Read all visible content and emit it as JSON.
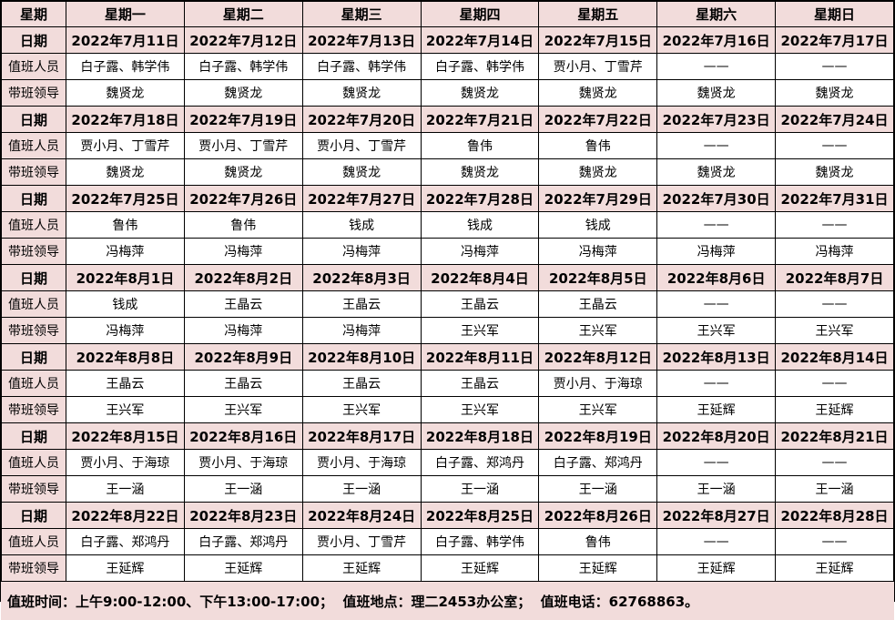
{
  "header": {
    "corner_label": "星期",
    "days": [
      "星期一",
      "星期二",
      "星期三",
      "星期四",
      "星期五",
      "星期六",
      "星期日"
    ]
  },
  "row_labels": {
    "date": "日期",
    "staff": "值班人员",
    "leader": "带班领导"
  },
  "weeks": [
    {
      "dates": [
        "2022年7月11日",
        "2022年7月12日",
        "2022年7月13日",
        "2022年7月14日",
        "2022年7月15日",
        "2022年7月16日",
        "2022年7月17日"
      ],
      "staff": [
        "白子露、韩学伟",
        "白子露、韩学伟",
        "白子露、韩学伟",
        "白子露、韩学伟",
        "贾小月、丁雪芹",
        "——",
        "——"
      ],
      "leaders": [
        "魏贤龙",
        "魏贤龙",
        "魏贤龙",
        "魏贤龙",
        "魏贤龙",
        "魏贤龙",
        "魏贤龙"
      ]
    },
    {
      "dates": [
        "2022年7月18日",
        "2022年7月19日",
        "2022年7月20日",
        "2022年7月21日",
        "2022年7月22日",
        "2022年7月23日",
        "2022年7月24日"
      ],
      "staff": [
        "贾小月、丁雪芹",
        "贾小月、丁雪芹",
        "贾小月、丁雪芹",
        "鲁伟",
        "鲁伟",
        "——",
        "——"
      ],
      "leaders": [
        "魏贤龙",
        "魏贤龙",
        "魏贤龙",
        "魏贤龙",
        "魏贤龙",
        "魏贤龙",
        "魏贤龙"
      ]
    },
    {
      "dates": [
        "2022年7月25日",
        "2022年7月26日",
        "2022年7月27日",
        "2022年7月28日",
        "2022年7月29日",
        "2022年7月30日",
        "2022年7月31日"
      ],
      "staff": [
        "鲁伟",
        "鲁伟",
        "钱成",
        "钱成",
        "钱成",
        "——",
        "——"
      ],
      "leaders": [
        "冯梅萍",
        "冯梅萍",
        "冯梅萍",
        "冯梅萍",
        "冯梅萍",
        "冯梅萍",
        "冯梅萍"
      ]
    },
    {
      "dates": [
        "2022年8月1日",
        "2022年8月2日",
        "2022年8月3日",
        "2022年8月4日",
        "2022年8月5日",
        "2022年8月6日",
        "2022年8月7日"
      ],
      "staff": [
        "钱成",
        "王晶云",
        "王晶云",
        "王晶云",
        "王晶云",
        "——",
        "——"
      ],
      "leaders": [
        "冯梅萍",
        "冯梅萍",
        "冯梅萍",
        "王兴军",
        "王兴军",
        "王兴军",
        "王兴军"
      ]
    },
    {
      "dates": [
        "2022年8月8日",
        "2022年8月9日",
        "2022年8月10日",
        "2022年8月11日",
        "2022年8月12日",
        "2022年8月13日",
        "2022年8月14日"
      ],
      "staff": [
        "王晶云",
        "王晶云",
        "王晶云",
        "王晶云",
        "贾小月、于海琼",
        "——",
        "——"
      ],
      "leaders": [
        "王兴军",
        "王兴军",
        "王兴军",
        "王兴军",
        "王兴军",
        "王延辉",
        "王延辉"
      ]
    },
    {
      "dates": [
        "2022年8月15日",
        "2022年8月16日",
        "2022年8月17日",
        "2022年8月18日",
        "2022年8月19日",
        "2022年8月20日",
        "2022年8月21日"
      ],
      "staff": [
        "贾小月、于海琼",
        "贾小月、于海琼",
        "贾小月、于海琼",
        "白子露、郑鸿丹",
        "白子露、郑鸿丹",
        "——",
        "——"
      ],
      "leaders": [
        "王一涵",
        "王一涵",
        "王一涵",
        "王一涵",
        "王一涵",
        "王一涵",
        "王一涵"
      ]
    },
    {
      "dates": [
        "2022年8月22日",
        "2022年8月23日",
        "2022年8月24日",
        "2022年8月25日",
        "2022年8月26日",
        "2022年8月27日",
        "2022年8月28日"
      ],
      "staff": [
        "白子露、郑鸿丹",
        "白子露、郑鸿丹",
        "贾小月、丁雪芹",
        "白子露、韩学伟",
        "鲁伟",
        "——",
        "——"
      ],
      "leaders": [
        "王延辉",
        "王延辉",
        "王延辉",
        "王延辉",
        "王延辉",
        "王延辉",
        "王延辉"
      ]
    }
  ],
  "footer": {
    "text": "值班时间：上午9:00-12:00、下午13:00-17:00；  值班地点：理二2453办公室；  值班电话：62768863。"
  },
  "colors": {
    "cell_pink": "#F2DCDB",
    "cell_white": "#FFFFFF",
    "border": "#000000",
    "text": "#000000"
  }
}
